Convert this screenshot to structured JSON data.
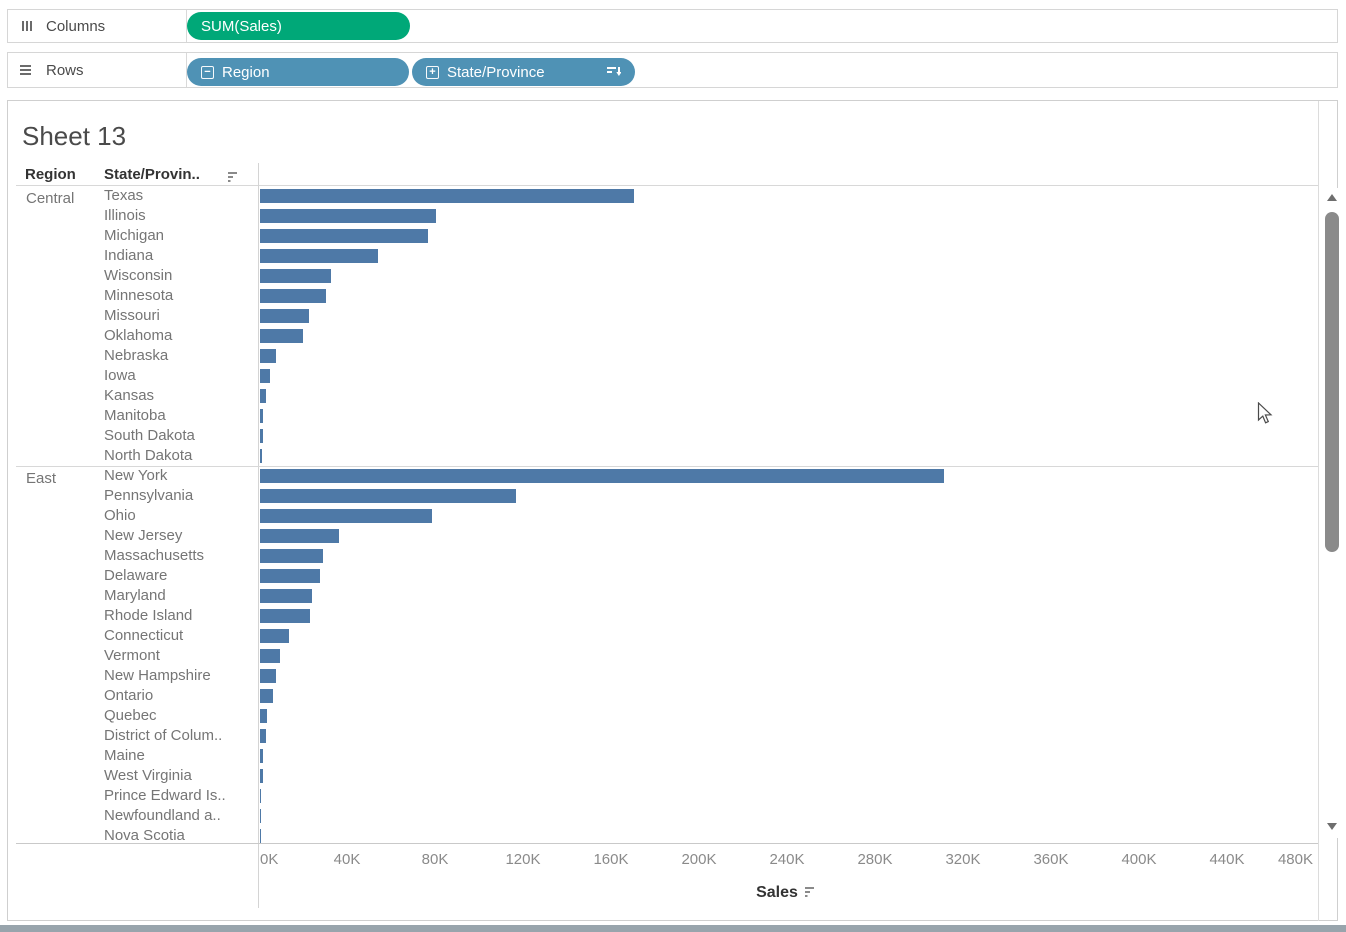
{
  "shelves": {
    "columns": {
      "label": "Columns",
      "pill": "SUM(Sales)"
    },
    "rows": {
      "label": "Rows",
      "pill_region": "Region",
      "pill_state": "State/Province"
    }
  },
  "sheet": {
    "title": "Sheet 13"
  },
  "colors": {
    "measure_pill": "#00a878",
    "dimension_pill": "#4f92b5",
    "bar": "#4e79a7",
    "header_text": "#333333",
    "row_label_text": "#757575",
    "axis_text": "#8a8a8a",
    "border": "#d6d6d6"
  },
  "chart_data": {
    "type": "bar",
    "orientation": "horizontal",
    "title": "Sheet 13",
    "column_headers": [
      "Region",
      "State/Provin.."
    ],
    "xlabel": "Sales",
    "xlim": [
      0,
      480000
    ],
    "x_ticks": [
      "0K",
      "40K",
      "80K",
      "120K",
      "160K",
      "200K",
      "240K",
      "280K",
      "320K",
      "360K",
      "400K",
      "440K",
      "480K"
    ],
    "sort": "descending by Sales within Region",
    "legend": "none",
    "grid": "off",
    "groups": [
      {
        "region": "Central",
        "states": [
          {
            "label": "Texas",
            "value": 170188
          },
          {
            "label": "Illinois",
            "value": 80166
          },
          {
            "label": "Michigan",
            "value": 76270
          },
          {
            "label": "Indiana",
            "value": 53555
          },
          {
            "label": "Wisconsin",
            "value": 32115
          },
          {
            "label": "Minnesota",
            "value": 29863
          },
          {
            "label": "Missouri",
            "value": 22205
          },
          {
            "label": "Oklahoma",
            "value": 19683
          },
          {
            "label": "Nebraska",
            "value": 7465
          },
          {
            "label": "Iowa",
            "value": 4580
          },
          {
            "label": "Kansas",
            "value": 2914
          },
          {
            "label": "Manitoba",
            "value": 1500
          },
          {
            "label": "South Dakota",
            "value": 1316
          },
          {
            "label": "North Dakota",
            "value": 920
          }
        ]
      },
      {
        "region": "East",
        "states": [
          {
            "label": "New York",
            "value": 310876
          },
          {
            "label": "Pennsylvania",
            "value": 116512
          },
          {
            "label": "Ohio",
            "value": 78258
          },
          {
            "label": "New Jersey",
            "value": 35764
          },
          {
            "label": "Massachusetts",
            "value": 28634
          },
          {
            "label": "Delaware",
            "value": 27451
          },
          {
            "label": "Maryland",
            "value": 23706
          },
          {
            "label": "Rhode Island",
            "value": 22628
          },
          {
            "label": "Connecticut",
            "value": 13384
          },
          {
            "label": "Vermont",
            "value": 8929
          },
          {
            "label": "New Hampshire",
            "value": 7293
          },
          {
            "label": "Ontario",
            "value": 6000
          },
          {
            "label": "Quebec",
            "value": 3200
          },
          {
            "label": "District of Colum..",
            "value": 2865
          },
          {
            "label": "Maine",
            "value": 1271
          },
          {
            "label": "West Virginia",
            "value": 1209
          },
          {
            "label": "Prince Edward Is..",
            "value": 450
          },
          {
            "label": "Newfoundland a..",
            "value": 250
          },
          {
            "label": "Nova Scotia",
            "value": 200
          }
        ]
      }
    ]
  }
}
